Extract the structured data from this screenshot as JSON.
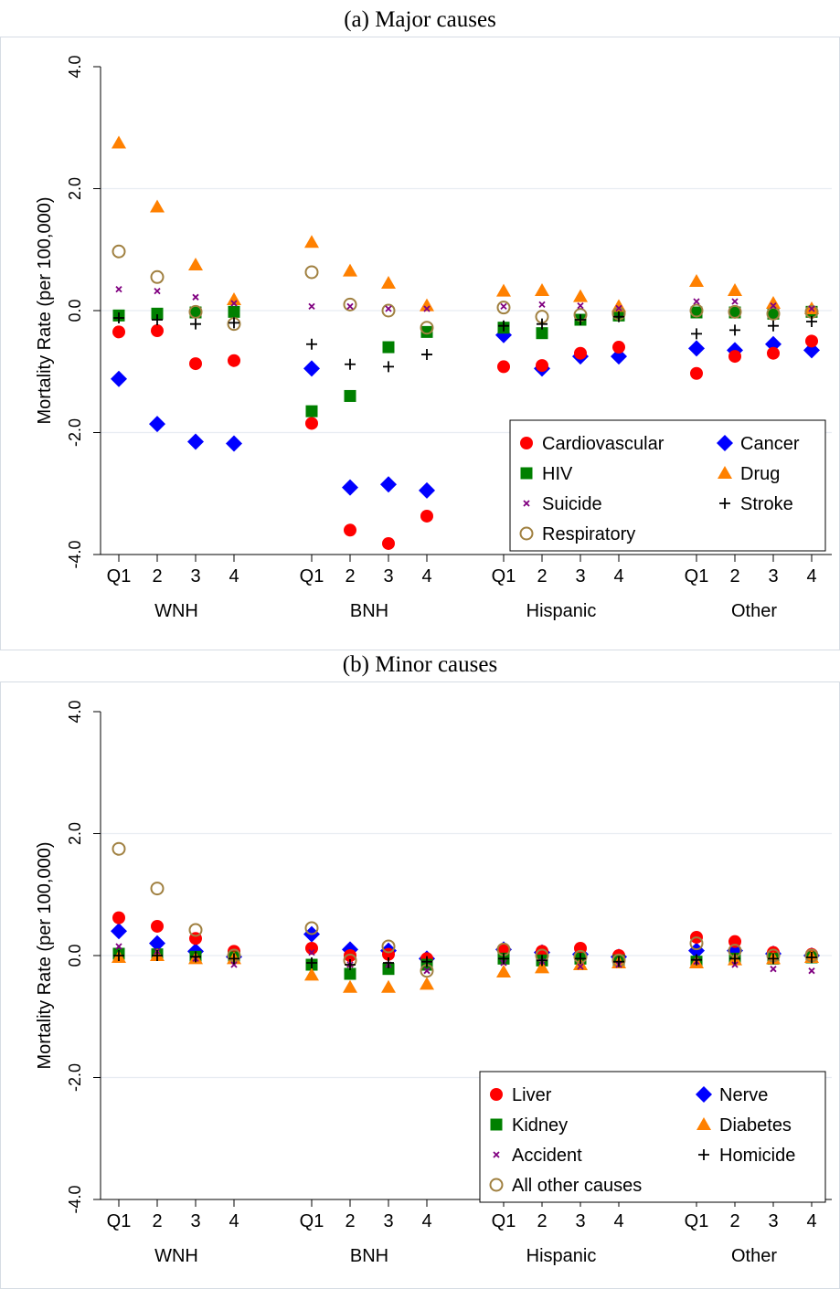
{
  "chart_data": [
    {
      "type": "scatter",
      "title": "(a) Major causes",
      "ylabel": "Mortality Rate (per 100,000)",
      "ylim": [
        -4,
        4
      ],
      "yticks": [
        "4.0",
        "2.0",
        "0.0",
        "-2.0",
        "-4.0"
      ],
      "grid": true,
      "legend_position": "bottom-right",
      "x_tick_labels": [
        "Q1",
        "2",
        "3",
        "4"
      ],
      "groups": [
        "WNH",
        "BNH",
        "Hispanic",
        "Other"
      ],
      "series": [
        {
          "name": "Cardiovascular",
          "marker": "circle",
          "color": "#ff0000",
          "values": [
            -0.35,
            -0.33,
            -0.87,
            -0.82,
            -1.85,
            -3.6,
            -3.82,
            -3.37,
            -0.92,
            -0.9,
            -0.7,
            -0.6,
            -1.03,
            -0.75,
            -0.7,
            -0.5
          ]
        },
        {
          "name": "Cancer",
          "marker": "diamond",
          "color": "#0000ff",
          "values": [
            -1.12,
            -1.86,
            -2.15,
            -2.18,
            -0.95,
            -2.9,
            -2.85,
            -2.95,
            -0.4,
            -0.95,
            -0.75,
            -0.75,
            -0.62,
            -0.65,
            -0.55,
            -0.65
          ]
        },
        {
          "name": "HIV",
          "marker": "square",
          "color": "#008000",
          "values": [
            -0.08,
            -0.05,
            -0.03,
            -0.02,
            -1.65,
            -1.4,
            -0.6,
            -0.35,
            -0.28,
            -0.37,
            -0.15,
            -0.08,
            -0.03,
            -0.03,
            -0.05,
            -0.02
          ]
        },
        {
          "name": "Drug",
          "marker": "triangle",
          "color": "#ff8000",
          "values": [
            2.75,
            1.7,
            0.75,
            0.18,
            1.12,
            0.65,
            0.45,
            0.08,
            0.32,
            0.33,
            0.23,
            0.07,
            0.48,
            0.33,
            0.12,
            0.03
          ]
        },
        {
          "name": "Suicide",
          "marker": "x",
          "color": "#800080",
          "values": [
            0.35,
            0.32,
            0.22,
            0.12,
            0.07,
            0.07,
            0.03,
            0.03,
            0.07,
            0.1,
            0.08,
            0.04,
            0.15,
            0.15,
            0.08,
            0.03
          ]
        },
        {
          "name": "Stroke",
          "marker": "plus",
          "color": "#000000",
          "values": [
            -0.12,
            -0.15,
            -0.22,
            -0.2,
            -0.55,
            -0.88,
            -0.92,
            -0.72,
            -0.25,
            -0.22,
            -0.15,
            -0.1,
            -0.38,
            -0.32,
            -0.25,
            -0.18
          ]
        },
        {
          "name": "Respiratory",
          "marker": "open-circle",
          "color": "#a08040",
          "values": [
            0.97,
            0.55,
            -0.02,
            -0.22,
            0.63,
            0.1,
            0.0,
            -0.28,
            0.05,
            -0.1,
            -0.07,
            -0.05,
            0.0,
            -0.02,
            -0.05,
            -0.02
          ]
        }
      ]
    },
    {
      "type": "scatter",
      "title": "(b) Minor causes",
      "ylabel": "Mortality Rate (per 100,000)",
      "ylim": [
        -4,
        4
      ],
      "yticks": [
        "4.0",
        "2.0",
        "0.0",
        "-2.0",
        "-4.0"
      ],
      "grid": true,
      "legend_position": "bottom-right",
      "x_tick_labels": [
        "Q1",
        "2",
        "3",
        "4"
      ],
      "groups": [
        "WNH",
        "BNH",
        "Hispanic",
        "Other"
      ],
      "series": [
        {
          "name": "Liver",
          "marker": "circle",
          "color": "#ff0000",
          "values": [
            0.62,
            0.48,
            0.28,
            0.07,
            0.12,
            0.0,
            0.02,
            -0.05,
            0.1,
            0.07,
            0.12,
            0.0,
            0.3,
            0.23,
            0.05,
            0.02
          ]
        },
        {
          "name": "Nerve",
          "marker": "diamond",
          "color": "#0000ff",
          "values": [
            0.4,
            0.2,
            0.07,
            -0.02,
            0.35,
            0.1,
            0.08,
            -0.05,
            0.1,
            0.05,
            0.02,
            -0.02,
            0.08,
            0.08,
            0.03,
            0.0
          ]
        },
        {
          "name": "Kidney",
          "marker": "square",
          "color": "#008000",
          "values": [
            0.03,
            0.02,
            -0.02,
            -0.03,
            -0.15,
            -0.3,
            -0.22,
            -0.15,
            -0.05,
            -0.08,
            -0.05,
            -0.08,
            -0.1,
            -0.05,
            -0.05,
            -0.03
          ]
        },
        {
          "name": "Diabetes",
          "marker": "triangle",
          "color": "#ff8000",
          "values": [
            -0.03,
            0.0,
            -0.05,
            -0.05,
            -0.32,
            -0.52,
            -0.52,
            -0.47,
            -0.27,
            -0.2,
            -0.15,
            -0.12,
            -0.12,
            -0.07,
            -0.05,
            -0.03
          ]
        },
        {
          "name": "Accident",
          "marker": "x",
          "color": "#800080",
          "values": [
            0.15,
            0.07,
            -0.05,
            -0.15,
            0.05,
            -0.15,
            -0.15,
            -0.25,
            -0.12,
            -0.1,
            -0.18,
            -0.15,
            -0.1,
            -0.15,
            -0.22,
            -0.25
          ]
        },
        {
          "name": "Homicide",
          "marker": "plus",
          "color": "#000000",
          "values": [
            0.0,
            0.0,
            -0.02,
            -0.05,
            -0.12,
            -0.15,
            -0.12,
            -0.1,
            -0.05,
            -0.08,
            -0.05,
            -0.1,
            -0.07,
            -0.05,
            -0.05,
            -0.03
          ]
        },
        {
          "name": "All other causes",
          "marker": "open-circle",
          "color": "#a08040",
          "values": [
            1.75,
            1.1,
            0.42,
            0.0,
            0.45,
            -0.08,
            0.15,
            -0.25,
            0.1,
            0.0,
            -0.02,
            -0.08,
            0.2,
            0.08,
            0.0,
            0.0
          ]
        }
      ]
    }
  ]
}
